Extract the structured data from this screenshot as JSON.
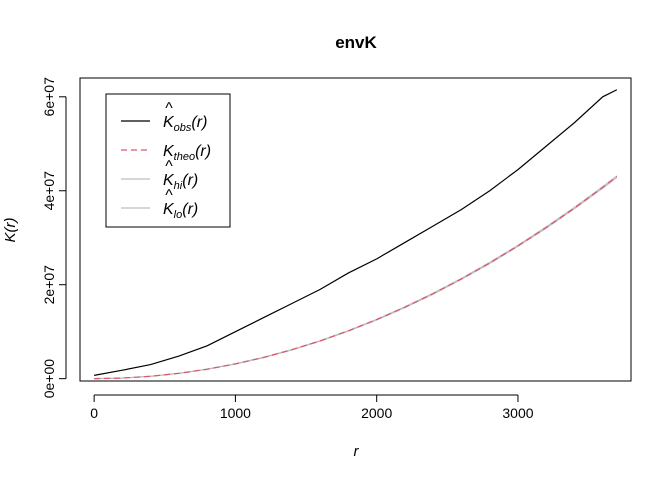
{
  "chart_data": {
    "type": "line",
    "title": "envK",
    "xlabel": "r",
    "ylabel": "K(r)",
    "xlim": [
      -100,
      3800
    ],
    "ylim": [
      -500000,
      64000000
    ],
    "x_ticks": [
      0,
      1000,
      2000,
      3000
    ],
    "x_tick_labels": [
      "0",
      "1000",
      "2000",
      "3000"
    ],
    "y_ticks": [
      0,
      20000000,
      40000000,
      60000000
    ],
    "y_tick_labels": [
      "0e+00",
      "2e+07",
      "4e+07",
      "6e+07"
    ],
    "grid": false,
    "legend_position": "top-left",
    "x": [
      0,
      200,
      400,
      600,
      800,
      1000,
      1200,
      1400,
      1600,
      1800,
      2000,
      2200,
      2400,
      2600,
      2800,
      3000,
      3200,
      3400,
      3600,
      3700
    ],
    "series": [
      {
        "name": "K_obs(r)",
        "base": "K",
        "hat": true,
        "sub": "obs",
        "color": "#000000",
        "dash": "solid",
        "values": [
          700000,
          1800000,
          3000000,
          4800000,
          7000000,
          10000000,
          13000000,
          16000000,
          19000000,
          22500000,
          25500000,
          29000000,
          32500000,
          36000000,
          40000000,
          44500000,
          49500000,
          54500000,
          60000000,
          61500000
        ]
      },
      {
        "name": "K_theo(r)",
        "base": "K",
        "hat": false,
        "sub": "theo",
        "color": "#df536b",
        "dash": "dashed",
        "values": [
          0,
          130000,
          500000,
          1130000,
          2010000,
          3140000,
          4520000,
          6160000,
          8040000,
          10180000,
          12570000,
          15210000,
          18100000,
          21240000,
          24630000,
          28270000,
          32170000,
          36320000,
          40720000,
          43000000
        ]
      },
      {
        "name": "K_hi(r)",
        "base": "K",
        "hat": true,
        "sub": "hi",
        "color": "#bebebe",
        "dash": "solid",
        "values": [
          0,
          130000,
          510000,
          1150000,
          2030000,
          3170000,
          4560000,
          6200000,
          8090000,
          10240000,
          12640000,
          15290000,
          18190000,
          21340000,
          24740000,
          28390000,
          32300000,
          36460000,
          40880000,
          43170000
        ]
      },
      {
        "name": "K_lo(r)",
        "base": "K",
        "hat": true,
        "sub": "lo",
        "color": "#bebebe",
        "dash": "solid",
        "values": [
          0,
          120000,
          490000,
          1110000,
          1990000,
          3110000,
          4480000,
          6120000,
          7990000,
          10120000,
          12500000,
          15130000,
          18010000,
          21140000,
          24520000,
          28150000,
          32040000,
          36180000,
          40560000,
          42830000
        ]
      }
    ]
  }
}
